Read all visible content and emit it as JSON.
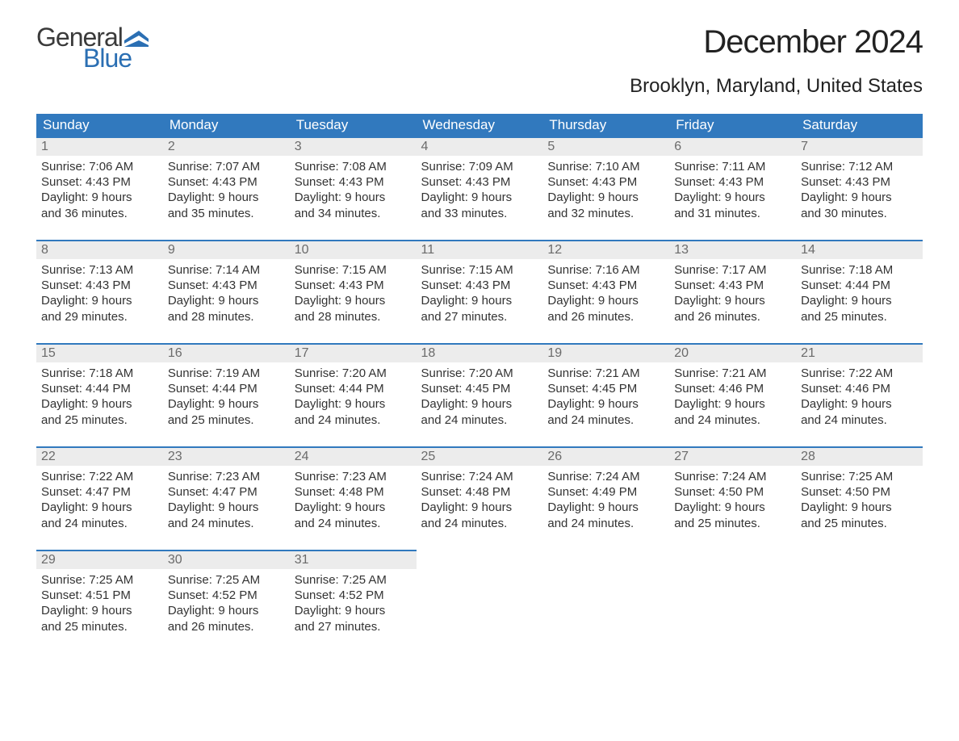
{
  "logo": {
    "text_top": "General",
    "text_bottom": "Blue",
    "color_top": "#3a3a3a",
    "color_bottom": "#2b6fb3",
    "flag_color": "#2b6fb3"
  },
  "header": {
    "month_title": "December 2024",
    "location": "Brooklyn, Maryland, United States"
  },
  "styling": {
    "header_bg": "#3179be",
    "header_text": "#ffffff",
    "daynum_bg": "#ececec",
    "daynum_border": "#3179be",
    "daynum_text": "#6b6b6b",
    "body_text": "#333333",
    "page_bg": "#ffffff",
    "month_title_fontsize": 40,
    "location_fontsize": 24,
    "dayname_fontsize": 17,
    "body_fontsize": 15
  },
  "day_names": [
    "Sunday",
    "Monday",
    "Tuesday",
    "Wednesday",
    "Thursday",
    "Friday",
    "Saturday"
  ],
  "weeks": [
    [
      {
        "num": "1",
        "sunrise": "Sunrise: 7:06 AM",
        "sunset": "Sunset: 4:43 PM",
        "dl1": "Daylight: 9 hours",
        "dl2": "and 36 minutes."
      },
      {
        "num": "2",
        "sunrise": "Sunrise: 7:07 AM",
        "sunset": "Sunset: 4:43 PM",
        "dl1": "Daylight: 9 hours",
        "dl2": "and 35 minutes."
      },
      {
        "num": "3",
        "sunrise": "Sunrise: 7:08 AM",
        "sunset": "Sunset: 4:43 PM",
        "dl1": "Daylight: 9 hours",
        "dl2": "and 34 minutes."
      },
      {
        "num": "4",
        "sunrise": "Sunrise: 7:09 AM",
        "sunset": "Sunset: 4:43 PM",
        "dl1": "Daylight: 9 hours",
        "dl2": "and 33 minutes."
      },
      {
        "num": "5",
        "sunrise": "Sunrise: 7:10 AM",
        "sunset": "Sunset: 4:43 PM",
        "dl1": "Daylight: 9 hours",
        "dl2": "and 32 minutes."
      },
      {
        "num": "6",
        "sunrise": "Sunrise: 7:11 AM",
        "sunset": "Sunset: 4:43 PM",
        "dl1": "Daylight: 9 hours",
        "dl2": "and 31 minutes."
      },
      {
        "num": "7",
        "sunrise": "Sunrise: 7:12 AM",
        "sunset": "Sunset: 4:43 PM",
        "dl1": "Daylight: 9 hours",
        "dl2": "and 30 minutes."
      }
    ],
    [
      {
        "num": "8",
        "sunrise": "Sunrise: 7:13 AM",
        "sunset": "Sunset: 4:43 PM",
        "dl1": "Daylight: 9 hours",
        "dl2": "and 29 minutes."
      },
      {
        "num": "9",
        "sunrise": "Sunrise: 7:14 AM",
        "sunset": "Sunset: 4:43 PM",
        "dl1": "Daylight: 9 hours",
        "dl2": "and 28 minutes."
      },
      {
        "num": "10",
        "sunrise": "Sunrise: 7:15 AM",
        "sunset": "Sunset: 4:43 PM",
        "dl1": "Daylight: 9 hours",
        "dl2": "and 28 minutes."
      },
      {
        "num": "11",
        "sunrise": "Sunrise: 7:15 AM",
        "sunset": "Sunset: 4:43 PM",
        "dl1": "Daylight: 9 hours",
        "dl2": "and 27 minutes."
      },
      {
        "num": "12",
        "sunrise": "Sunrise: 7:16 AM",
        "sunset": "Sunset: 4:43 PM",
        "dl1": "Daylight: 9 hours",
        "dl2": "and 26 minutes."
      },
      {
        "num": "13",
        "sunrise": "Sunrise: 7:17 AM",
        "sunset": "Sunset: 4:43 PM",
        "dl1": "Daylight: 9 hours",
        "dl2": "and 26 minutes."
      },
      {
        "num": "14",
        "sunrise": "Sunrise: 7:18 AM",
        "sunset": "Sunset: 4:44 PM",
        "dl1": "Daylight: 9 hours",
        "dl2": "and 25 minutes."
      }
    ],
    [
      {
        "num": "15",
        "sunrise": "Sunrise: 7:18 AM",
        "sunset": "Sunset: 4:44 PM",
        "dl1": "Daylight: 9 hours",
        "dl2": "and 25 minutes."
      },
      {
        "num": "16",
        "sunrise": "Sunrise: 7:19 AM",
        "sunset": "Sunset: 4:44 PM",
        "dl1": "Daylight: 9 hours",
        "dl2": "and 25 minutes."
      },
      {
        "num": "17",
        "sunrise": "Sunrise: 7:20 AM",
        "sunset": "Sunset: 4:44 PM",
        "dl1": "Daylight: 9 hours",
        "dl2": "and 24 minutes."
      },
      {
        "num": "18",
        "sunrise": "Sunrise: 7:20 AM",
        "sunset": "Sunset: 4:45 PM",
        "dl1": "Daylight: 9 hours",
        "dl2": "and 24 minutes."
      },
      {
        "num": "19",
        "sunrise": "Sunrise: 7:21 AM",
        "sunset": "Sunset: 4:45 PM",
        "dl1": "Daylight: 9 hours",
        "dl2": "and 24 minutes."
      },
      {
        "num": "20",
        "sunrise": "Sunrise: 7:21 AM",
        "sunset": "Sunset: 4:46 PM",
        "dl1": "Daylight: 9 hours",
        "dl2": "and 24 minutes."
      },
      {
        "num": "21",
        "sunrise": "Sunrise: 7:22 AM",
        "sunset": "Sunset: 4:46 PM",
        "dl1": "Daylight: 9 hours",
        "dl2": "and 24 minutes."
      }
    ],
    [
      {
        "num": "22",
        "sunrise": "Sunrise: 7:22 AM",
        "sunset": "Sunset: 4:47 PM",
        "dl1": "Daylight: 9 hours",
        "dl2": "and 24 minutes."
      },
      {
        "num": "23",
        "sunrise": "Sunrise: 7:23 AM",
        "sunset": "Sunset: 4:47 PM",
        "dl1": "Daylight: 9 hours",
        "dl2": "and 24 minutes."
      },
      {
        "num": "24",
        "sunrise": "Sunrise: 7:23 AM",
        "sunset": "Sunset: 4:48 PM",
        "dl1": "Daylight: 9 hours",
        "dl2": "and 24 minutes."
      },
      {
        "num": "25",
        "sunrise": "Sunrise: 7:24 AM",
        "sunset": "Sunset: 4:48 PM",
        "dl1": "Daylight: 9 hours",
        "dl2": "and 24 minutes."
      },
      {
        "num": "26",
        "sunrise": "Sunrise: 7:24 AM",
        "sunset": "Sunset: 4:49 PM",
        "dl1": "Daylight: 9 hours",
        "dl2": "and 24 minutes."
      },
      {
        "num": "27",
        "sunrise": "Sunrise: 7:24 AM",
        "sunset": "Sunset: 4:50 PM",
        "dl1": "Daylight: 9 hours",
        "dl2": "and 25 minutes."
      },
      {
        "num": "28",
        "sunrise": "Sunrise: 7:25 AM",
        "sunset": "Sunset: 4:50 PM",
        "dl1": "Daylight: 9 hours",
        "dl2": "and 25 minutes."
      }
    ],
    [
      {
        "num": "29",
        "sunrise": "Sunrise: 7:25 AM",
        "sunset": "Sunset: 4:51 PM",
        "dl1": "Daylight: 9 hours",
        "dl2": "and 25 minutes."
      },
      {
        "num": "30",
        "sunrise": "Sunrise: 7:25 AM",
        "sunset": "Sunset: 4:52 PM",
        "dl1": "Daylight: 9 hours",
        "dl2": "and 26 minutes."
      },
      {
        "num": "31",
        "sunrise": "Sunrise: 7:25 AM",
        "sunset": "Sunset: 4:52 PM",
        "dl1": "Daylight: 9 hours",
        "dl2": "and 27 minutes."
      },
      null,
      null,
      null,
      null
    ]
  ]
}
